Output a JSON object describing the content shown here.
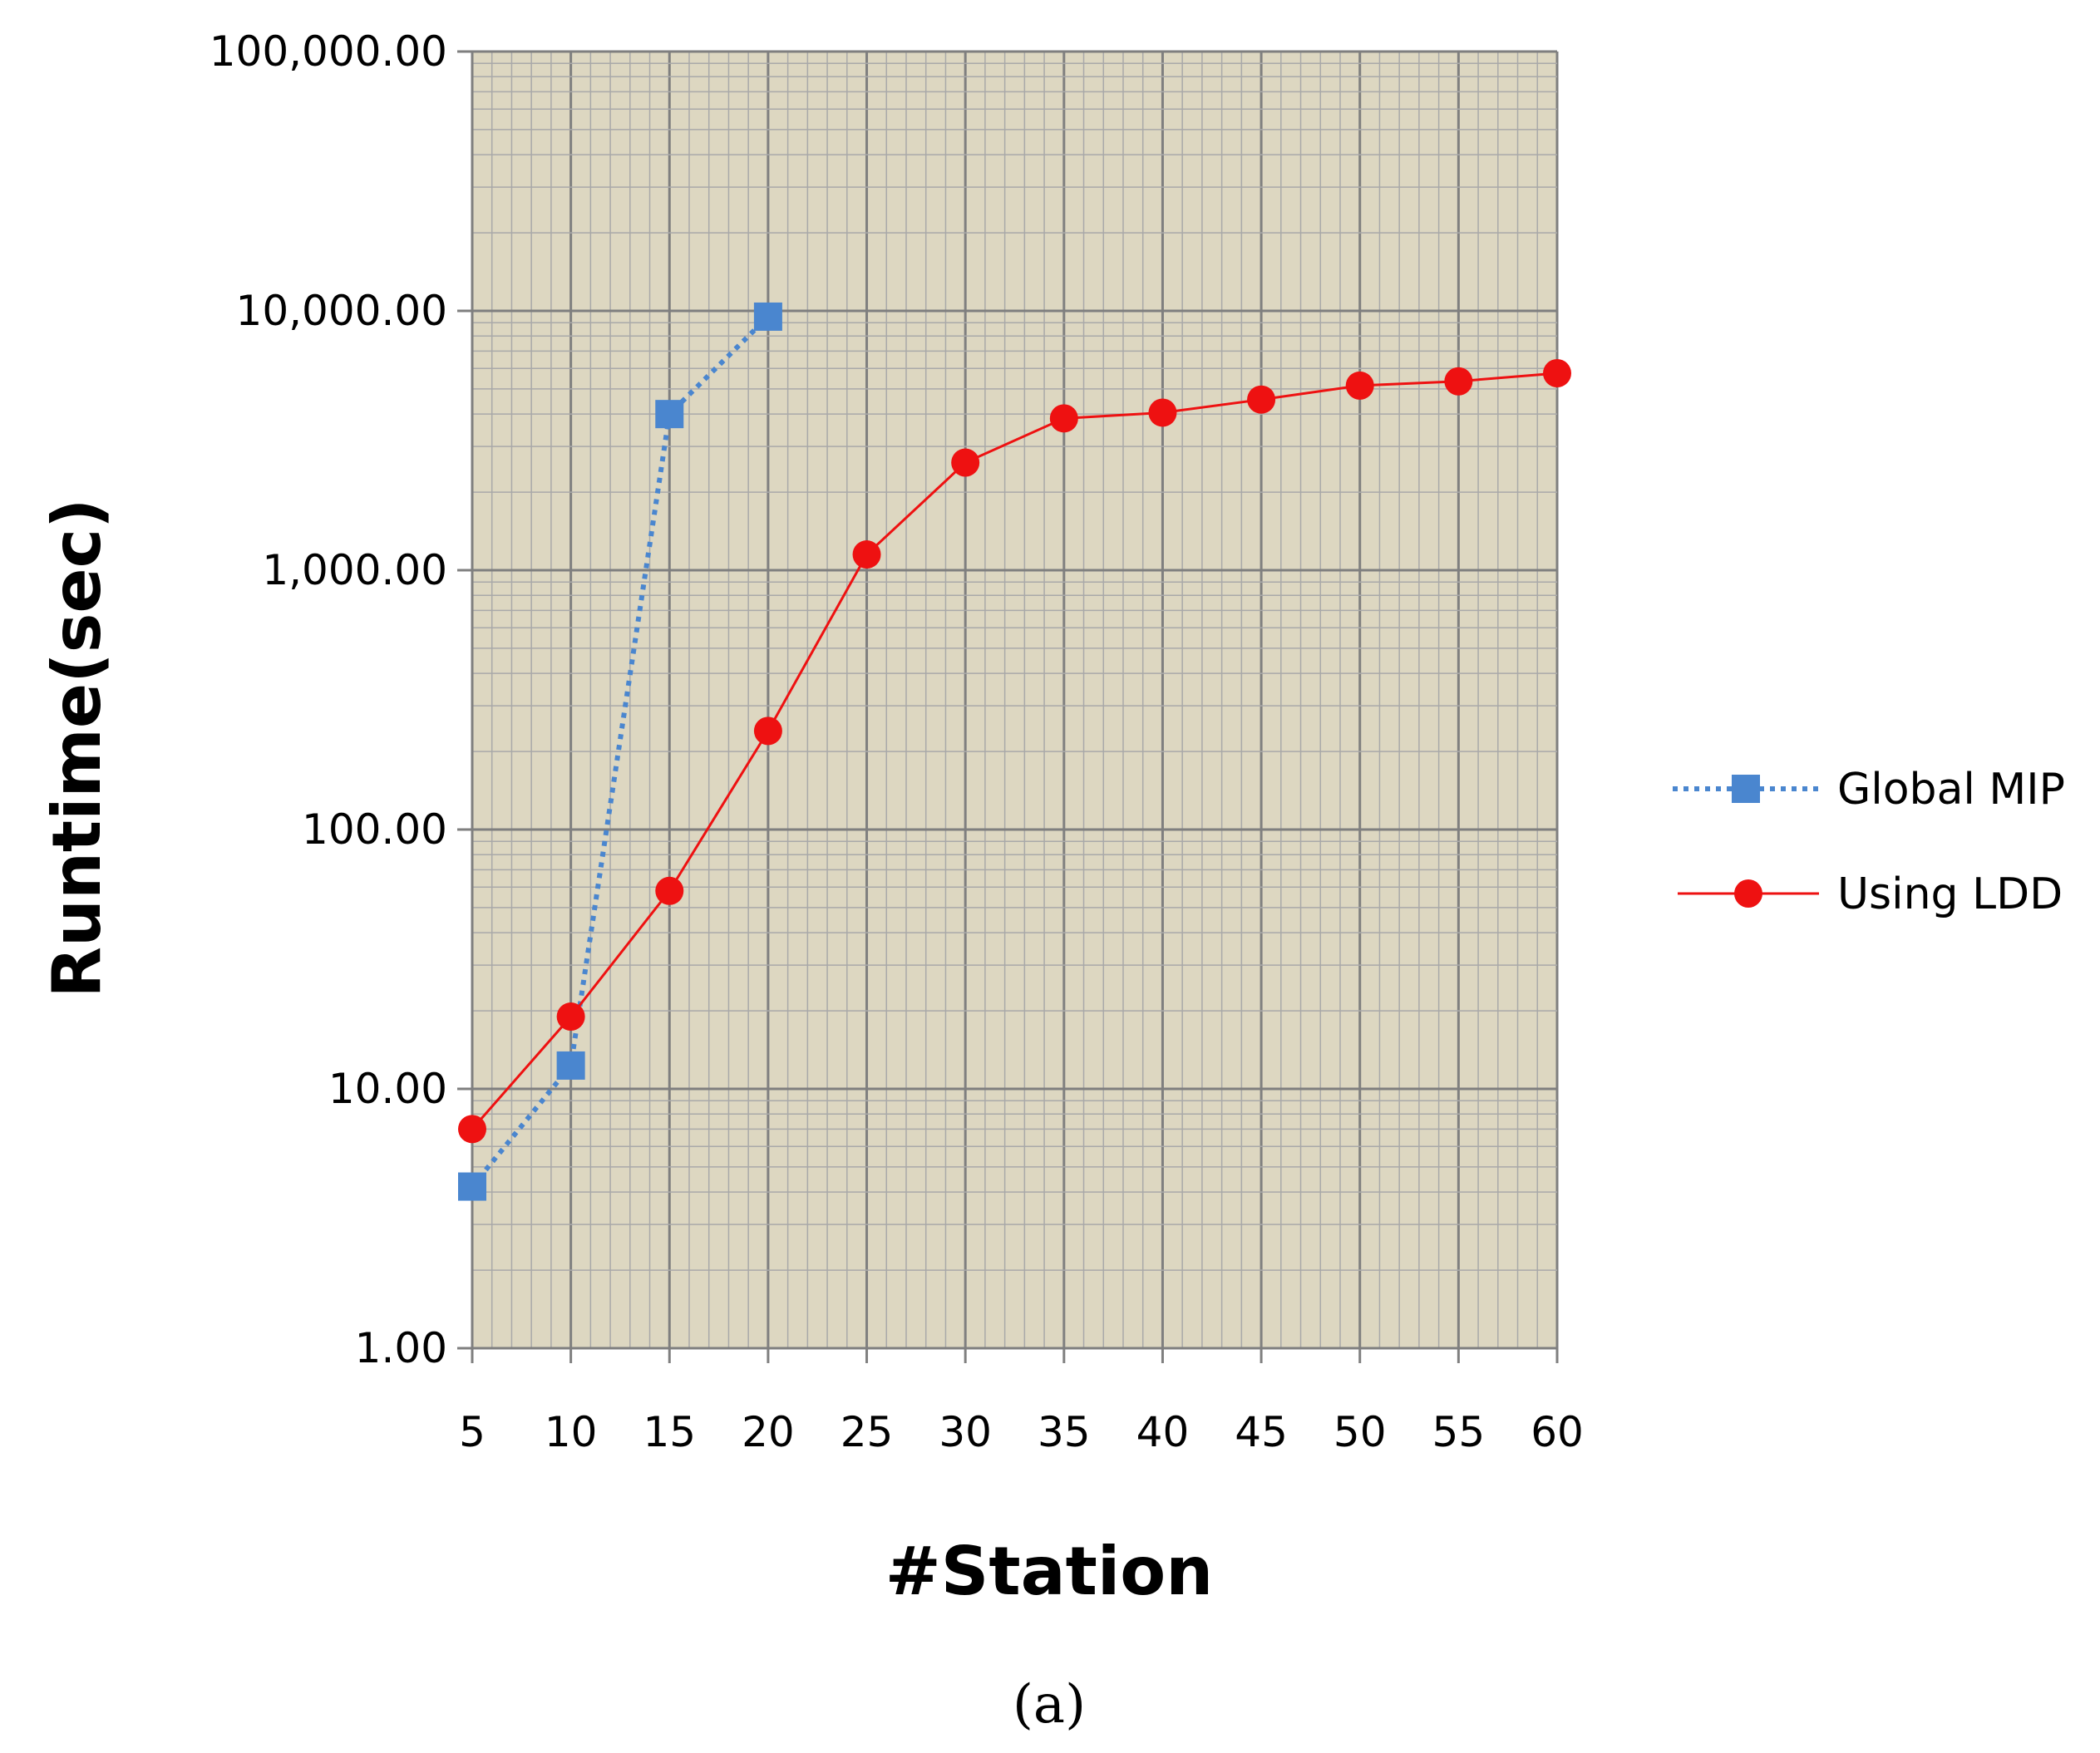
{
  "chart_data": {
    "type": "line",
    "title": "",
    "xlabel": "#Station",
    "ylabel": "Runtime(sec)",
    "caption": "(a)",
    "y_scale": "log",
    "ylim": [
      1,
      100000
    ],
    "xlim": [
      5,
      60
    ],
    "x": [
      5,
      10,
      15,
      20,
      25,
      30,
      35,
      40,
      45,
      50,
      55,
      60
    ],
    "x_tick_labels": [
      "5",
      "10",
      "15",
      "20",
      "25",
      "30",
      "35",
      "40",
      "45",
      "50",
      "55",
      "60"
    ],
    "y_tick_labels": [
      "1.00",
      "10.00",
      "100.00",
      "1,000.00",
      "10,000.00",
      "100,000.00"
    ],
    "grid": true,
    "legend_position": "right",
    "plot_background": "#ddd7c1",
    "series": [
      {
        "name": "Global MIP",
        "color": "#4a86cf",
        "line_style": "dotted",
        "marker": "square",
        "x": [
          5,
          10,
          15,
          20
        ],
        "values": [
          4.2,
          12.3,
          4000,
          9500
        ]
      },
      {
        "name": "Using LDD",
        "color": "#ee1111",
        "line_style": "solid",
        "marker": "circle",
        "x": [
          5,
          10,
          15,
          20,
          25,
          30,
          35,
          40,
          45,
          50,
          55,
          60
        ],
        "values": [
          7,
          19,
          58,
          240,
          1150,
          2600,
          3850,
          4050,
          4550,
          5150,
          5350,
          5750
        ]
      }
    ]
  }
}
